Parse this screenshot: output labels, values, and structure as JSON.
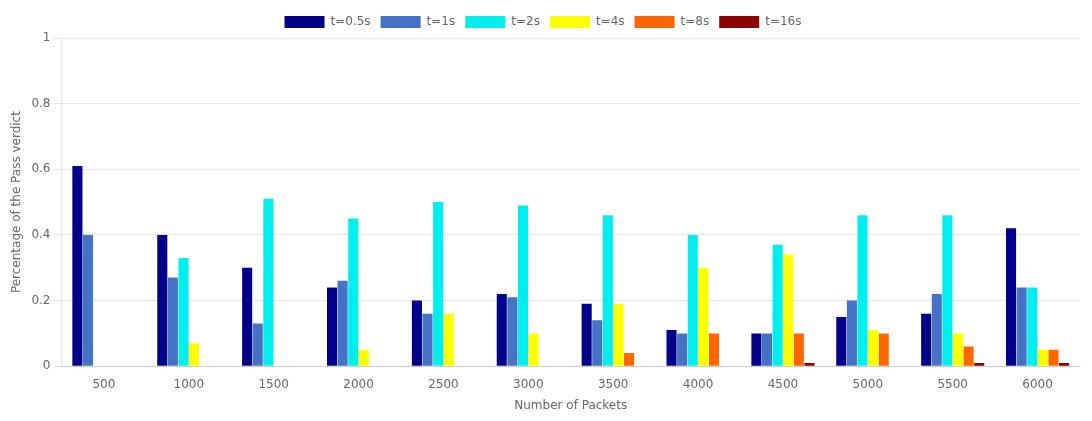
{
  "chart_data": {
    "type": "bar",
    "categories": [
      500,
      1000,
      1500,
      2000,
      2500,
      3000,
      3500,
      4000,
      4500,
      5000,
      5500,
      6000
    ],
    "series": [
      {
        "name": "t=0.5s",
        "color": "#00008B",
        "values": [
          0.61,
          0.4,
          0.3,
          0.24,
          0.2,
          0.22,
          0.19,
          0.11,
          0.1,
          0.15,
          0.16,
          0.42
        ]
      },
      {
        "name": "t=1s",
        "color": "#4472C4",
        "values": [
          0.4,
          0.27,
          0.13,
          0.26,
          0.16,
          0.21,
          0.14,
          0.1,
          0.1,
          0.2,
          0.22,
          0.24
        ]
      },
      {
        "name": "t=2s",
        "color": "#00EEEE",
        "values": [
          0.0,
          0.33,
          0.51,
          0.45,
          0.5,
          0.49,
          0.46,
          0.4,
          0.37,
          0.46,
          0.46,
          0.24
        ]
      },
      {
        "name": "t=4s",
        "color": "#FFFF00",
        "values": [
          0.0,
          0.07,
          0.0,
          0.05,
          0.16,
          0.1,
          0.19,
          0.3,
          0.34,
          0.11,
          0.1,
          0.05
        ]
      },
      {
        "name": "t=8s",
        "color": "#FF6600",
        "values": [
          0.0,
          0.0,
          0.0,
          0.0,
          0.0,
          0.0,
          0.04,
          0.1,
          0.1,
          0.1,
          0.06,
          0.05
        ]
      },
      {
        "name": "t=16s",
        "color": "#8B0000",
        "values": [
          0.0,
          0.0,
          0.0,
          0.0,
          0.0,
          0.0,
          0.0,
          0.0,
          0.01,
          0.0,
          0.01,
          0.01
        ]
      }
    ],
    "xlabel": "Number of Packets",
    "ylabel": "Percentage of the Pass verdict",
    "ylim": [
      0,
      1.0
    ],
    "yticks": [
      0,
      0.2,
      0.4,
      0.6,
      0.8,
      1
    ],
    "grid": true,
    "legend": "top"
  }
}
